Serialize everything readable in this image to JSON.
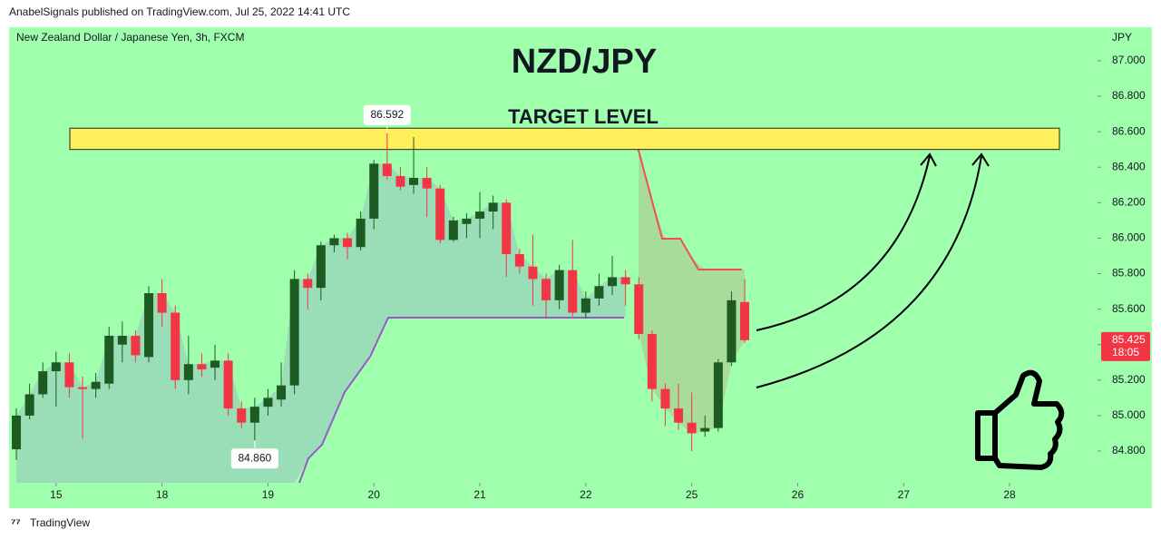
{
  "header": "AnabelSignals published on TradingView.com, Jul 25, 2022 14:41 UTC",
  "footer": "TradingView",
  "chart_data": {
    "type": "candlestick",
    "title": "NZD/JPY",
    "subtitle": "New Zealand Dollar / Japanese Yen, 3h, FXCM",
    "y_axis_label": "JPY",
    "annotation": "TARGET LEVEL",
    "target_zone": [
      86.5,
      86.62
    ],
    "countdown": "18:05",
    "open": [
      84.81,
      85.0,
      85.12,
      85.25,
      85.3,
      85.16,
      85.15,
      85.18,
      85.4,
      85.45,
      85.33,
      85.69,
      85.58,
      85.2,
      85.29,
      85.27,
      85.31,
      85.04,
      84.96,
      85.05,
      85.09,
      85.17,
      85.77,
      85.72,
      85.96,
      86.0,
      85.95,
      86.11,
      86.42,
      86.35,
      86.3,
      86.34,
      86.28,
      85.99,
      86.08,
      86.11,
      86.15,
      86.2,
      85.91,
      85.84,
      85.77,
      85.65,
      85.82,
      85.58,
      85.66,
      85.73,
      85.78,
      85.74,
      85.46,
      85.15,
      85.04,
      84.96,
      84.91,
      84.93,
      85.3,
      85.64
    ],
    "high": [
      85.04,
      85.18,
      85.3,
      85.36,
      85.35,
      85.22,
      85.24,
      85.5,
      85.53,
      85.48,
      85.73,
      85.77,
      85.62,
      85.45,
      85.35,
      85.4,
      85.35,
      85.08,
      85.1,
      85.15,
      85.3,
      85.82,
      85.8,
      85.98,
      86.02,
      86.03,
      86.15,
      86.44,
      86.592,
      86.4,
      86.57,
      86.4,
      86.3,
      86.12,
      86.14,
      86.26,
      86.24,
      86.22,
      85.94,
      86.02,
      85.8,
      85.85,
      85.99,
      85.7,
      85.8,
      85.9,
      85.82,
      85.78,
      85.48,
      85.18,
      85.18,
      85.13,
      85.0,
      85.32,
      85.7,
      85.77
    ],
    "low": [
      84.75,
      84.98,
      85.1,
      85.05,
      85.1,
      84.87,
      85.1,
      85.15,
      85.3,
      85.3,
      85.3,
      85.5,
      85.15,
      85.12,
      85.22,
      85.2,
      85.0,
      84.93,
      84.86,
      85.0,
      85.05,
      85.12,
      85.6,
      85.65,
      85.92,
      85.88,
      85.93,
      86.05,
      86.33,
      86.27,
      86.25,
      86.12,
      85.97,
      85.98,
      86.0,
      86.0,
      86.05,
      85.78,
      85.8,
      85.62,
      85.55,
      85.6,
      85.56,
      85.55,
      85.62,
      85.68,
      85.62,
      85.43,
      85.08,
      84.94,
      84.92,
      84.8,
      84.88,
      84.91,
      85.28,
      85.41
    ],
    "close": [
      85.0,
      85.12,
      85.25,
      85.3,
      85.16,
      85.15,
      85.19,
      85.45,
      85.45,
      85.34,
      85.69,
      85.58,
      85.2,
      85.29,
      85.26,
      85.31,
      85.04,
      84.96,
      85.05,
      85.1,
      85.17,
      85.77,
      85.72,
      85.96,
      86.0,
      85.95,
      86.11,
      86.42,
      86.35,
      86.29,
      86.34,
      86.28,
      85.99,
      86.1,
      86.11,
      86.15,
      86.2,
      85.91,
      85.84,
      85.77,
      85.65,
      85.82,
      85.58,
      85.66,
      85.73,
      85.78,
      85.74,
      85.46,
      85.15,
      85.04,
      84.96,
      84.9,
      84.93,
      85.3,
      85.65,
      85.425
    ],
    "up_color": "#1e5b22",
    "down_color": "#f23645",
    "xlim": [
      -0.55,
      81.64
    ],
    "xticks": [
      {
        "value": 3,
        "label": "15"
      },
      {
        "value": 11,
        "label": "18"
      },
      {
        "value": 19,
        "label": "19"
      },
      {
        "value": 27,
        "label": "20"
      },
      {
        "value": 35,
        "label": "21"
      },
      {
        "value": 43,
        "label": "22"
      },
      {
        "value": 51,
        "label": "25"
      },
      {
        "value": 59,
        "label": "26"
      },
      {
        "value": 67,
        "label": "27"
      },
      {
        "value": 75,
        "label": "28"
      }
    ],
    "ylim": [
      84.621,
      87.189
    ],
    "yticks": [
      {
        "value": 84.8,
        "label": "84.800"
      },
      {
        "value": 85.0,
        "label": "85.000"
      },
      {
        "value": 85.2,
        "label": "85.200"
      },
      {
        "value": 85.4,
        "label": "85.400"
      },
      {
        "value": 85.6,
        "label": "85.600"
      },
      {
        "value": 85.8,
        "label": "85.800"
      },
      {
        "value": 86.0,
        "label": "86.000"
      },
      {
        "value": 86.2,
        "label": "86.200"
      },
      {
        "value": 86.4,
        "label": "86.400"
      },
      {
        "value": 86.6,
        "label": "86.600"
      },
      {
        "value": 86.8,
        "label": "86.800"
      },
      {
        "value": 87.0,
        "label": "87.000"
      }
    ],
    "price_labels": [
      {
        "value": 86.592,
        "label": "86.592"
      },
      {
        "value": 84.86,
        "label": "84.860"
      },
      {
        "value": 85.425,
        "label": "85.425"
      }
    ]
  }
}
